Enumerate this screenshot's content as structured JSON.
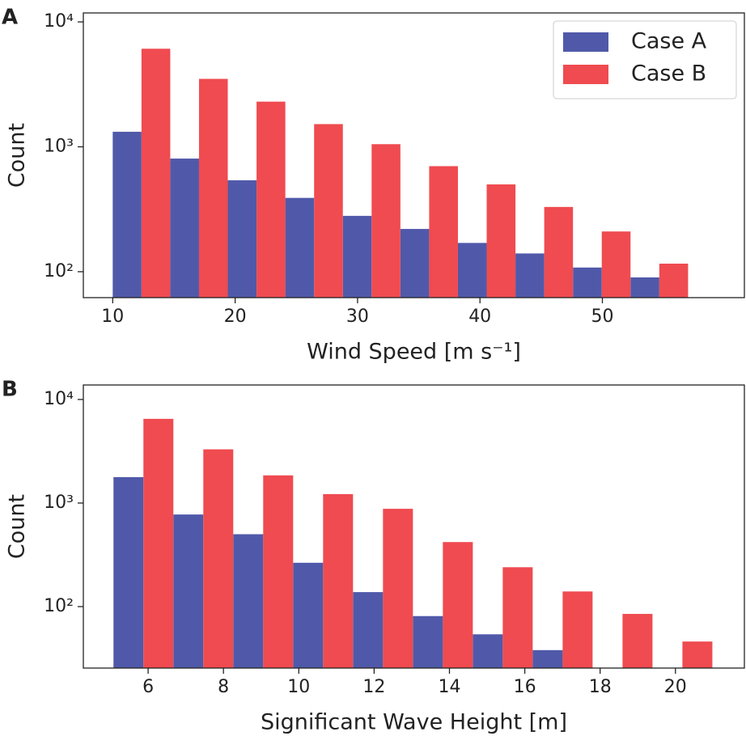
{
  "chart_data": [
    {
      "type": "histogram",
      "panel": "A",
      "xlabel": "Wind Speed [m s⁻¹]",
      "ylabel": "Count",
      "bins": [
        10,
        14.7,
        19.4,
        24.1,
        28.8,
        33.5,
        38.2,
        42.9,
        47.6,
        52.3,
        57
      ],
      "series": [
        {
          "name": "Case A",
          "color": "#5059a9",
          "values": [
            1320,
            805,
            540,
            390,
            280,
            220,
            170,
            140,
            108,
            90
          ]
        },
        {
          "name": "Case B",
          "color": "#ef4b50",
          "values": [
            6100,
            3500,
            2300,
            1520,
            1050,
            700,
            500,
            330,
            210,
            116
          ]
        }
      ],
      "xlim": [
        7.6,
        61.6
      ],
      "xticks": [
        10,
        20,
        30,
        40,
        50
      ],
      "ylim": [
        62,
        11800
      ],
      "log_y": true,
      "yticks": [
        {
          "value": 100,
          "label": "10²"
        },
        {
          "value": 1000,
          "label": "10³"
        },
        {
          "value": 10000,
          "label": "10⁴"
        }
      ],
      "legend": "upper right"
    },
    {
      "type": "histogram",
      "panel": "B",
      "xlabel": "Significant Wave Height [m]",
      "ylabel": "Count",
      "bins": [
        5.08,
        6.67,
        8.26,
        9.85,
        11.44,
        13.03,
        14.62,
        16.21,
        17.8,
        19.39,
        20.98
      ],
      "series": [
        {
          "color": "#5059a9",
          "values": [
            1780,
            775,
            500,
            265,
            138,
            81,
            54,
            38,
            0,
            0
          ]
        },
        {
          "color": "#ef4b50",
          "values": [
            6500,
            3300,
            1850,
            1220,
            880,
            420,
            240,
            140,
            85,
            46
          ]
        }
      ],
      "xlim": [
        4.28,
        21.83
      ],
      "xticks": [
        6,
        8,
        10,
        12,
        14,
        16,
        18,
        20
      ],
      "ylim": [
        25.5,
        13800
      ],
      "log_y": true,
      "yticks": [
        {
          "value": 100,
          "label": "10²"
        },
        {
          "value": 1000,
          "label": "10³"
        },
        {
          "value": 10000,
          "label": "10⁴"
        }
      ]
    }
  ]
}
